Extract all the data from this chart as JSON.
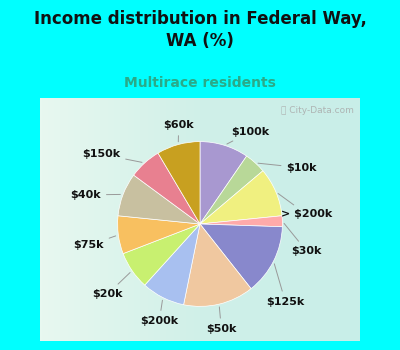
{
  "title": "Income distribution in Federal Way,\nWA (%)",
  "subtitle": "Multirace residents",
  "background_color": "#00ffff",
  "watermark": "City-Data.com",
  "slices": [
    {
      "label": "$100k",
      "value": 9,
      "color": "#a898d0"
    },
    {
      "label": "$10k",
      "value": 4,
      "color": "#b8d898"
    },
    {
      "label": "> $200k",
      "value": 9,
      "color": "#f0f080"
    },
    {
      "label": "$30k",
      "value": 2,
      "color": "#ffaaaa"
    },
    {
      "label": "$125k",
      "value": 13,
      "color": "#8888cc"
    },
    {
      "label": "$50k",
      "value": 13,
      "color": "#f0c8a0"
    },
    {
      "label": "$200k",
      "value": 8,
      "color": "#a8c0f0"
    },
    {
      "label": "$20k",
      "value": 7,
      "color": "#c8f070"
    },
    {
      "label": "$75k",
      "value": 7,
      "color": "#f8c060"
    },
    {
      "label": "$40k",
      "value": 8,
      "color": "#c8c0a0"
    },
    {
      "label": "$150k",
      "value": 6,
      "color": "#e88090"
    },
    {
      "label": "$60k",
      "value": 8,
      "color": "#c8a020"
    }
  ],
  "title_fontsize": 12,
  "subtitle_fontsize": 10,
  "label_fontsize": 8
}
